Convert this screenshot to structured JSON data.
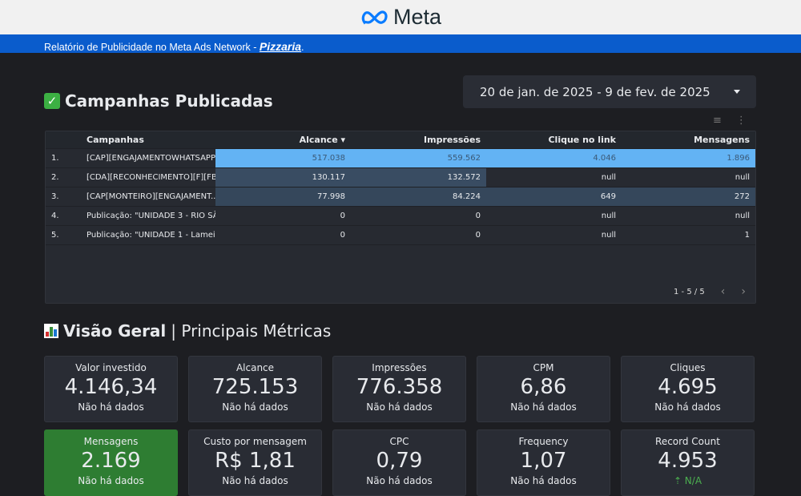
{
  "header": {
    "logo_text": "Meta",
    "banner_text": "Relatório de Publicidade no Meta Ads Network - ",
    "banner_brand": "Pizzaria",
    "banner_end": "."
  },
  "campaigns": {
    "title": "Campanhas Publicadas",
    "date_range": "20 de jan. de 2025 - 9 de fev. de 2025",
    "columns": [
      "Campanhas",
      "Alcance ▾",
      "Impressões",
      "Clique no link",
      "Mensagens"
    ],
    "rows": [
      {
        "idx": "1.",
        "name": "[CAP][ENGAJAMENTOWHATSAPP]...",
        "alcance": "517.038",
        "impressoes": "559.562",
        "cliques": "4.046",
        "mensagens": "1.896"
      },
      {
        "idx": "2.",
        "name": "[CDA][RECONHECIMENTO][F][FB-...",
        "alcance": "130.117",
        "impressoes": "132.572",
        "cliques": "null",
        "mensagens": "null"
      },
      {
        "idx": "3.",
        "name": "[CAP[MONTEIRO][ENGAJAMENT...",
        "alcance": "77.998",
        "impressoes": "84.224",
        "cliques": "649",
        "mensagens": "272"
      },
      {
        "idx": "4.",
        "name": "Publicação: \"UNIDADE 3 - RIO SÃ...",
        "alcance": "0",
        "impressoes": "0",
        "cliques": "null",
        "mensagens": "null"
      },
      {
        "idx": "5.",
        "name": "Publicação: \"UNIDADE 1 - Lamei...",
        "alcance": "0",
        "impressoes": "0",
        "cliques": "null",
        "mensagens": "1"
      }
    ],
    "pagination": "1 - 5 / 5"
  },
  "overview": {
    "title_bold": "Visão Geral",
    "title_rest": "| Principais Métricas",
    "cards": [
      {
        "label": "Valor investido",
        "value": "4.146,34",
        "sub": "Não há dados"
      },
      {
        "label": "Alcance",
        "value": "725.153",
        "sub": "Não há dados"
      },
      {
        "label": "Impressões",
        "value": "776.358",
        "sub": "Não há dados"
      },
      {
        "label": "CPM",
        "value": "6,86",
        "sub": "Não há dados"
      },
      {
        "label": "Cliques",
        "value": "4.695",
        "sub": "Não há dados"
      },
      {
        "label": "Mensagens",
        "value": "2.169",
        "sub": "Não há dados"
      },
      {
        "label": "Custo por mensagem",
        "value": "R$ 1,81",
        "sub": "Não há dados"
      },
      {
        "label": "CPC",
        "value": "0,79",
        "sub": "Não há dados"
      },
      {
        "label": "Frequency",
        "value": "1,07",
        "sub": "Não há dados"
      },
      {
        "label": "Record Count",
        "value": "4.953",
        "sub": "⇡ N/A"
      }
    ]
  },
  "colors": {
    "blue": "#0a5ccc",
    "heat_high": "#63b3f4",
    "green": "#2e7d32"
  }
}
